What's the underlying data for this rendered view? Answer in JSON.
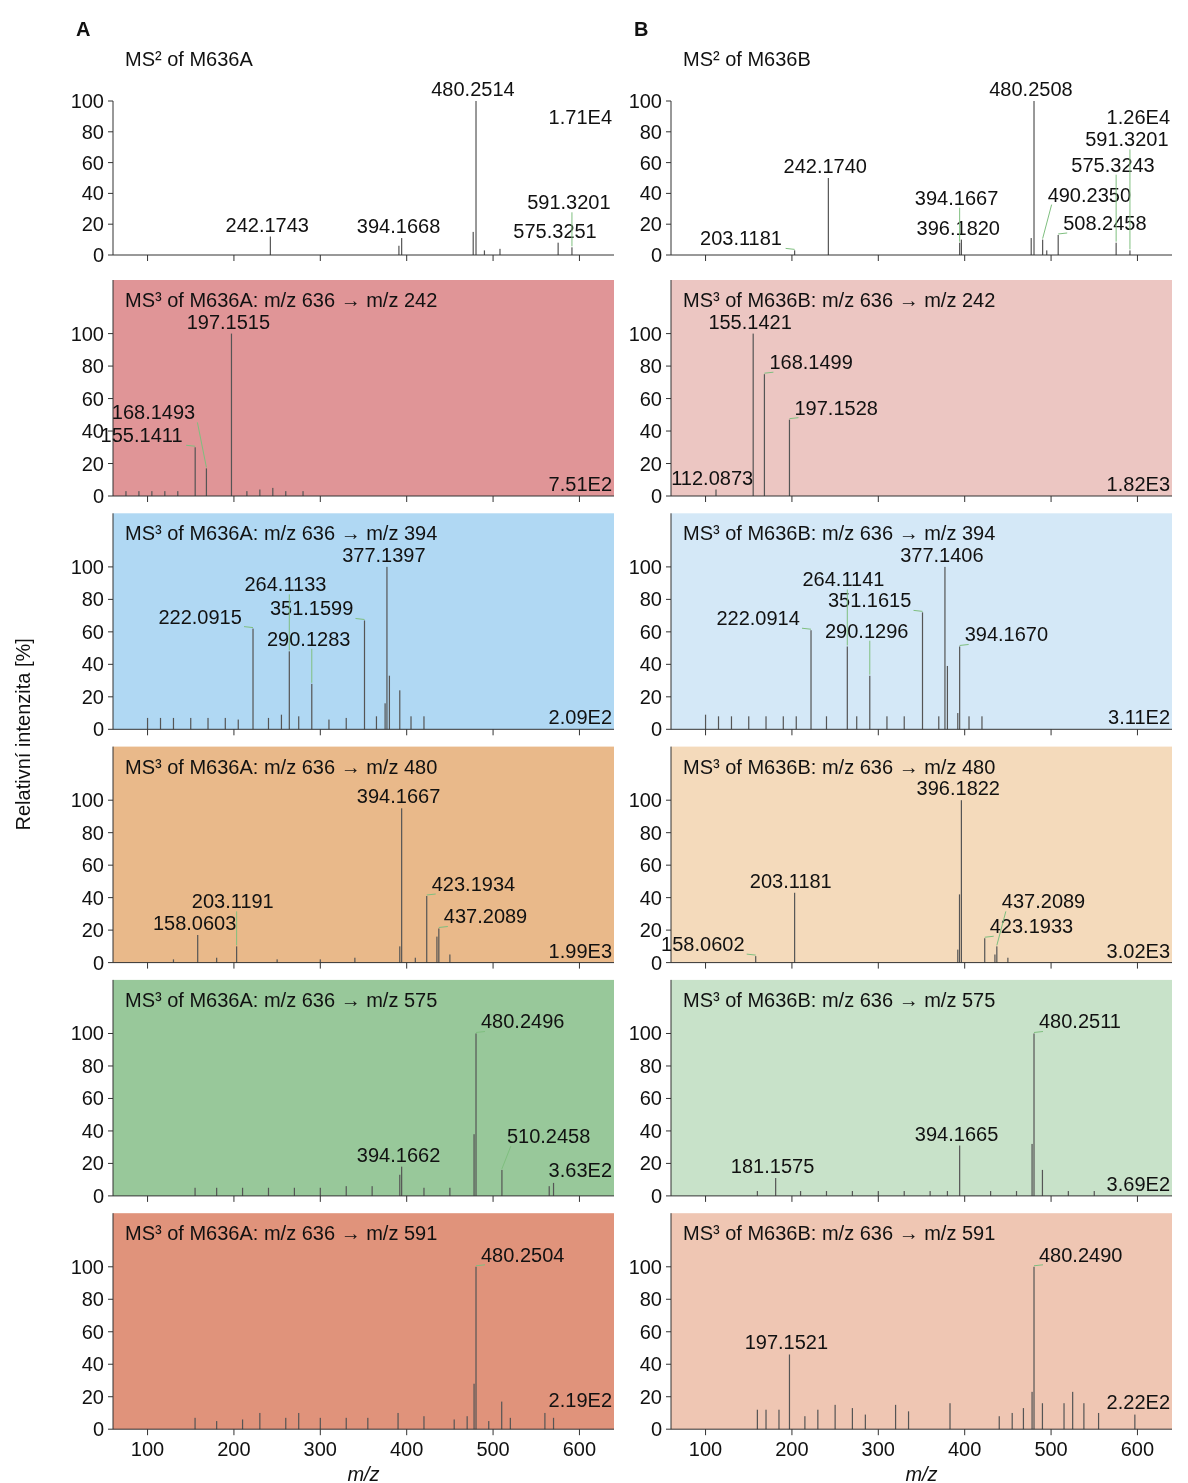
{
  "chart_data": [
    {
      "type": "bar",
      "title": "A",
      "subtitle": "MS² of M636A",
      "x": [
        242.1743,
        391,
        394.1668,
        477,
        480.2514,
        490,
        508,
        575.3251,
        591.3201
      ],
      "values": [
        12,
        6,
        11,
        15,
        100,
        3,
        4,
        8,
        5
      ],
      "color": "#555555",
      "xlim": [
        60,
        640
      ],
      "xticks": [
        100,
        200,
        300,
        400,
        500,
        600
      ],
      "ylim": [
        0,
        100
      ],
      "yticks": [
        0,
        20,
        40,
        60,
        80,
        100
      ],
      "tick_labels": "y",
      "annotations": [
        {
          "text": "242.1743",
          "x": 242.1743,
          "y": 12
        },
        {
          "text": "394.1668",
          "x": 394.1668,
          "y": 11
        },
        {
          "text": "480.2514",
          "x": 480.2514,
          "y": 100
        },
        {
          "text": "575.3251",
          "x": 575.3251,
          "y": 8
        },
        {
          "text": "591.3201",
          "x": 591.3201,
          "y": 5
        },
        "1.71E4"
      ]
    },
    {
      "type": "bar",
      "title": "B",
      "subtitle": "MS² of M636B",
      "x": [
        203.1181,
        242.174,
        394.1667,
        396.182,
        477,
        480.2508,
        490.235,
        495,
        508.2458,
        575.3243,
        591.3201
      ],
      "values": [
        3,
        50,
        8,
        10,
        11,
        100,
        10,
        3,
        13,
        8,
        3
      ],
      "color": "#555555",
      "xlim": [
        60,
        640
      ],
      "xticks": [
        100,
        200,
        300,
        400,
        500,
        600
      ],
      "ylim": [
        0,
        100
      ],
      "yticks": [
        0,
        20,
        40,
        60,
        80,
        100
      ],
      "tick_labels": "y",
      "annotations": [
        {
          "text": "203.1181",
          "x": 203.1181,
          "y": 3
        },
        {
          "text": "242.1740",
          "x": 242.174,
          "y": 50
        },
        {
          "text": "394.1667",
          "x": 394.1667,
          "y": 8
        },
        {
          "text": "396.1820",
          "x": 396.182,
          "y": 10
        },
        {
          "text": "480.2508",
          "x": 480.2508,
          "y": 100
        },
        {
          "text": "490.2350",
          "x": 490.235,
          "y": 10
        },
        {
          "text": "508.2458",
          "x": 508.2458,
          "y": 13
        },
        {
          "text": "575.3243",
          "x": 575.3243,
          "y": 8
        },
        {
          "text": "591.3201",
          "x": 591.3201,
          "y": 3
        },
        "1.26E4"
      ]
    },
    {
      "type": "bar",
      "title": "MS³ of M636A: m/z 636 → m/z 242",
      "x": [
        75,
        90,
        105,
        120,
        135,
        155.1411,
        168.1493,
        197.1515,
        215,
        230,
        245,
        260,
        280
      ],
      "values": [
        3,
        3,
        3,
        3,
        3,
        30,
        17,
        100,
        3,
        4,
        5,
        3,
        3
      ],
      "color": "#555555",
      "xlim": [
        60,
        640
      ],
      "xticks": [
        100,
        200,
        300,
        400,
        500,
        600
      ],
      "ylim": [
        0,
        133
      ],
      "yticks": [
        0,
        20,
        40,
        60,
        80,
        100
      ],
      "tick_labels": "y",
      "bands": [
        {
          "axis": "x",
          "from": 60,
          "to": 640,
          "color": "#e09597"
        }
      ],
      "annotations": [
        {
          "text": "155.1411",
          "x": 155.1411,
          "y": 30
        },
        {
          "text": "168.1493",
          "x": 168.1493,
          "y": 17
        },
        {
          "text": "197.1515",
          "x": 197.1515,
          "y": 100
        },
        "7.51E2"
      ]
    },
    {
      "type": "bar",
      "title": "MS³ of M636B: m/z 636 → m/z 242",
      "x": [
        112.0873,
        155.1421,
        168.1499,
        197.1528
      ],
      "values": [
        4,
        100,
        75,
        47
      ],
      "color": "#555555",
      "xlim": [
        60,
        640
      ],
      "xticks": [
        100,
        200,
        300,
        400,
        500,
        600
      ],
      "ylim": [
        0,
        133
      ],
      "yticks": [
        0,
        20,
        40,
        60,
        80,
        100
      ],
      "tick_labels": "y",
      "bands": [
        {
          "axis": "x",
          "from": 60,
          "to": 640,
          "color": "#ecc6c2"
        }
      ],
      "annotations": [
        {
          "text": "112.0873",
          "x": 112.0873,
          "y": 4
        },
        {
          "text": "155.1421",
          "x": 155.1421,
          "y": 100
        },
        {
          "text": "168.1499",
          "x": 168.1499,
          "y": 75
        },
        {
          "text": "197.1528",
          "x": 197.1528,
          "y": 47
        },
        "1.82E3"
      ]
    },
    {
      "type": "bar",
      "title": "MS³ of M636A: m/z 636 → m/z 394",
      "ylabel": "Relativní intenzita [%]",
      "x": [
        100,
        115,
        130,
        150,
        170,
        190,
        205,
        222.0915,
        240,
        255,
        264.1133,
        275,
        290.1283,
        310,
        330,
        351.1599,
        365,
        375,
        377.1397,
        380,
        392,
        405,
        420
      ],
      "values": [
        7,
        7,
        7,
        7,
        7,
        7,
        6,
        62,
        7,
        9,
        48,
        8,
        28,
        6,
        7,
        67,
        8,
        16,
        100,
        33,
        24,
        8,
        8
      ],
      "color": "#555555",
      "xlim": [
        60,
        640
      ],
      "xticks": [
        100,
        200,
        300,
        400,
        500,
        600
      ],
      "ylim": [
        0,
        133
      ],
      "yticks": [
        0,
        20,
        40,
        60,
        80,
        100
      ],
      "tick_labels": "y",
      "bands": [
        {
          "axis": "x",
          "from": 60,
          "to": 640,
          "color": "#b0d8f3"
        }
      ],
      "annotations": [
        {
          "text": "222.0915",
          "x": 222.0915,
          "y": 62
        },
        {
          "text": "264.1133",
          "x": 264.1133,
          "y": 48
        },
        {
          "text": "290.1283",
          "x": 290.1283,
          "y": 28
        },
        {
          "text": "351.1599",
          "x": 351.1599,
          "y": 67
        },
        {
          "text": "377.1397",
          "x": 377.1397,
          "y": 100
        },
        "2.09E2"
      ]
    },
    {
      "type": "bar",
      "title": "MS³ of M636B: m/z 636 → m/z 394",
      "x": [
        100,
        115,
        130,
        150,
        170,
        190,
        205,
        222.0914,
        240,
        264.1141,
        275,
        290.1296,
        310,
        330,
        351.1615,
        370,
        377.1406,
        380,
        392,
        394.167,
        405,
        420
      ],
      "values": [
        9,
        8,
        8,
        8,
        8,
        8,
        8,
        61,
        8,
        51,
        8,
        33,
        8,
        8,
        72,
        8,
        100,
        39,
        10,
        51,
        8,
        8
      ],
      "color": "#555555",
      "xlim": [
        60,
        640
      ],
      "xticks": [
        100,
        200,
        300,
        400,
        500,
        600
      ],
      "ylim": [
        0,
        133
      ],
      "yticks": [
        0,
        20,
        40,
        60,
        80,
        100
      ],
      "tick_labels": "y",
      "bands": [
        {
          "axis": "x",
          "from": 60,
          "to": 640,
          "color": "#d4e8f7"
        }
      ],
      "annotations": [
        {
          "text": "222.0914",
          "x": 222.0914,
          "y": 61
        },
        {
          "text": "264.1141",
          "x": 264.1141,
          "y": 51
        },
        {
          "text": "290.1296",
          "x": 290.1296,
          "y": 33
        },
        {
          "text": "351.1615",
          "x": 351.1615,
          "y": 72
        },
        {
          "text": "377.1406",
          "x": 377.1406,
          "y": 100
        },
        {
          "text": "394.1670",
          "x": 394.167,
          "y": 51
        },
        "3.11E2"
      ]
    },
    {
      "type": "bar",
      "title": "MS³ of M636A: m/z 636 → m/z 480",
      "x": [
        130,
        158.0603,
        180,
        203.1191,
        250,
        300,
        340,
        392,
        394.1667,
        410,
        423.1934,
        435,
        437.2089,
        450
      ],
      "values": [
        2,
        17,
        3,
        10,
        2,
        2,
        3,
        10,
        95,
        3,
        41,
        16,
        21,
        5
      ],
      "color": "#555555",
      "xlim": [
        60,
        640
      ],
      "xticks": [
        100,
        200,
        300,
        400,
        500,
        600
      ],
      "ylim": [
        0,
        133
      ],
      "yticks": [
        0,
        20,
        40,
        60,
        80,
        100
      ],
      "tick_labels": "y",
      "bands": [
        {
          "axis": "x",
          "from": 60,
          "to": 640,
          "color": "#e9b98a"
        }
      ],
      "annotations": [
        {
          "text": "158.0603",
          "x": 158.0603,
          "y": 17
        },
        {
          "text": "203.1191",
          "x": 203.1191,
          "y": 10
        },
        {
          "text": "394.1667",
          "x": 394.1667,
          "y": 95
        },
        {
          "text": "423.1934",
          "x": 423.1934,
          "y": 41
        },
        {
          "text": "437.2089",
          "x": 437.2089,
          "y": 21
        },
        "1.99E3"
      ]
    },
    {
      "type": "bar",
      "title": "MS³ of M636B: m/z 636 → m/z 480",
      "x": [
        158.0602,
        203.1181,
        392,
        394,
        396.1822,
        423.1933,
        435,
        437.2089,
        450
      ],
      "values": [
        4,
        43,
        8,
        42,
        100,
        15,
        5,
        10,
        3
      ],
      "color": "#555555",
      "xlim": [
        60,
        640
      ],
      "xticks": [
        100,
        200,
        300,
        400,
        500,
        600
      ],
      "ylim": [
        0,
        133
      ],
      "yticks": [
        0,
        20,
        40,
        60,
        80,
        100
      ],
      "tick_labels": "y",
      "bands": [
        {
          "axis": "x",
          "from": 60,
          "to": 640,
          "color": "#f4dabb"
        }
      ],
      "annotations": [
        {
          "text": "158.0602",
          "x": 158.0602,
          "y": 4
        },
        {
          "text": "203.1181",
          "x": 203.1181,
          "y": 43
        },
        {
          "text": "396.1822",
          "x": 396.1822,
          "y": 100
        },
        {
          "text": "423.1933",
          "x": 423.1933,
          "y": 15
        },
        {
          "text": "437.2089",
          "x": 437.2089,
          "y": 10
        },
        "3.02E3"
      ]
    },
    {
      "type": "bar",
      "title": "MS³ of M636A: m/z 636 → m/z 575",
      "x": [
        155,
        180,
        210,
        240,
        270,
        300,
        330,
        360,
        392,
        394.1662,
        420,
        450,
        478,
        480.2496,
        510.2458,
        565,
        570
      ],
      "values": [
        5,
        5,
        5,
        5,
        5,
        5,
        6,
        6,
        13,
        18,
        5,
        5,
        38,
        100,
        16,
        6,
        8
      ],
      "color": "#555555",
      "xlim": [
        60,
        640
      ],
      "xticks": [
        100,
        200,
        300,
        400,
        500,
        600
      ],
      "ylim": [
        0,
        133
      ],
      "yticks": [
        0,
        20,
        40,
        60,
        80,
        100
      ],
      "tick_labels": "y",
      "bands": [
        {
          "axis": "x",
          "from": 60,
          "to": 640,
          "color": "#98c89a"
        }
      ],
      "annotations": [
        {
          "text": "394.1662",
          "x": 394.1662,
          "y": 18
        },
        {
          "text": "480.2496",
          "x": 480.2496,
          "y": 100
        },
        {
          "text": "510.2458",
          "x": 510.2458,
          "y": 16
        },
        "3.63E2"
      ]
    },
    {
      "type": "bar",
      "title": "MS³ of M636B: m/z 636 → m/z 575",
      "x": [
        160,
        181.1575,
        210,
        240,
        270,
        300,
        330,
        360,
        380,
        394.1665,
        430,
        460,
        478,
        480.2511,
        490,
        520,
        550
      ],
      "values": [
        3,
        11,
        3,
        3,
        3,
        3,
        3,
        3,
        3,
        31,
        3,
        3,
        32,
        100,
        16,
        3,
        3
      ],
      "color": "#555555",
      "xlim": [
        60,
        640
      ],
      "xticks": [
        100,
        200,
        300,
        400,
        500,
        600
      ],
      "ylim": [
        0,
        133
      ],
      "yticks": [
        0,
        20,
        40,
        60,
        80,
        100
      ],
      "tick_labels": "y",
      "bands": [
        {
          "axis": "x",
          "from": 60,
          "to": 640,
          "color": "#c8e2c9"
        }
      ],
      "annotations": [
        {
          "text": "181.1575",
          "x": 181.1575,
          "y": 11
        },
        {
          "text": "394.1665",
          "x": 394.1665,
          "y": 31
        },
        {
          "text": "480.2511",
          "x": 480.2511,
          "y": 100
        },
        "3.69E2"
      ]
    },
    {
      "type": "bar",
      "title": "MS³ of M636A: m/z 636 → m/z 591",
      "x": [
        155,
        180,
        210,
        230,
        260,
        275,
        300,
        330,
        355,
        390,
        420,
        455,
        470,
        478,
        480.2504,
        495,
        510,
        520,
        560,
        570
      ],
      "values": [
        7,
        5,
        6,
        10,
        7,
        10,
        7,
        7,
        7,
        10,
        8,
        6,
        8,
        28,
        100,
        5,
        17,
        7,
        10,
        7
      ],
      "color": "#555555",
      "xlim": [
        60,
        640
      ],
      "xticks": [
        100,
        200,
        300,
        400,
        500,
        600
      ],
      "ylim": [
        0,
        133
      ],
      "yticks": [
        0,
        20,
        40,
        60,
        80,
        100
      ],
      "xlabel": "m/z",
      "bands": [
        {
          "axis": "x",
          "from": 60,
          "to": 640,
          "color": "#e0937b"
        }
      ],
      "annotations": [
        {
          "text": "480.2504",
          "x": 480.2504,
          "y": 100
        },
        "2.19E2"
      ]
    },
    {
      "type": "bar",
      "title": "MS³ of M636B: m/z 636 → m/z 591",
      "x": [
        160,
        170,
        185,
        197.1521,
        215,
        230,
        250,
        270,
        285,
        320,
        335,
        383,
        440,
        455,
        468,
        478,
        480.249,
        490,
        515,
        525,
        538,
        555,
        597
      ],
      "values": [
        12,
        12,
        12,
        46,
        8,
        12,
        15,
        13,
        9,
        15,
        11,
        16,
        8,
        10,
        13,
        23,
        100,
        16,
        16,
        23,
        16,
        10,
        9
      ],
      "color": "#555555",
      "xlim": [
        60,
        640
      ],
      "xticks": [
        100,
        200,
        300,
        400,
        500,
        600
      ],
      "ylim": [
        0,
        133
      ],
      "yticks": [
        0,
        20,
        40,
        60,
        80,
        100
      ],
      "xlabel": "m/z",
      "bands": [
        {
          "axis": "x",
          "from": 60,
          "to": 640,
          "color": "#efc6b3"
        }
      ],
      "annotations": [
        {
          "text": "197.1521",
          "x": 197.1521,
          "y": 46
        },
        {
          "text": "480.2490",
          "x": 480.249,
          "y": 100
        },
        "2.22E2"
      ]
    }
  ]
}
